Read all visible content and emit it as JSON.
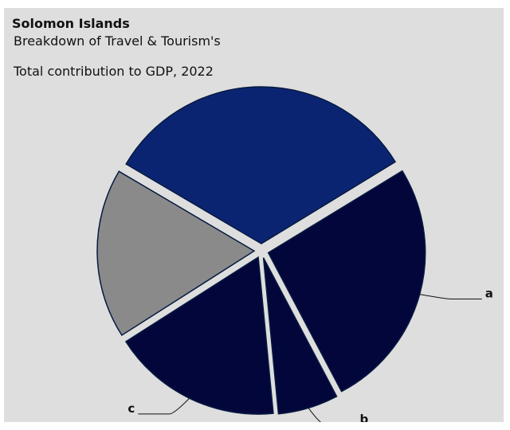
{
  "header": {
    "title": "Solomon Islands",
    "subtitle_line1": "Breakdown of Travel & Tourism's",
    "subtitle_line2": "Total contribution to GDP, 2022"
  },
  "chart_data": {
    "type": "pie",
    "slices": [
      {
        "label": "",
        "value": 32.8,
        "color": "#0b2472"
      },
      {
        "label": "a",
        "value": 26.0,
        "color": "#03063b"
      },
      {
        "label": "b",
        "value": 6.2,
        "color": "#03063b"
      },
      {
        "label": "c",
        "value": 17.5,
        "color": "#03063b"
      },
      {
        "label": "",
        "value": 17.5,
        "color": "#8a8a8a"
      }
    ],
    "start_angle_deg": 300.5,
    "outline_color": "#061a40",
    "legend": "none"
  }
}
